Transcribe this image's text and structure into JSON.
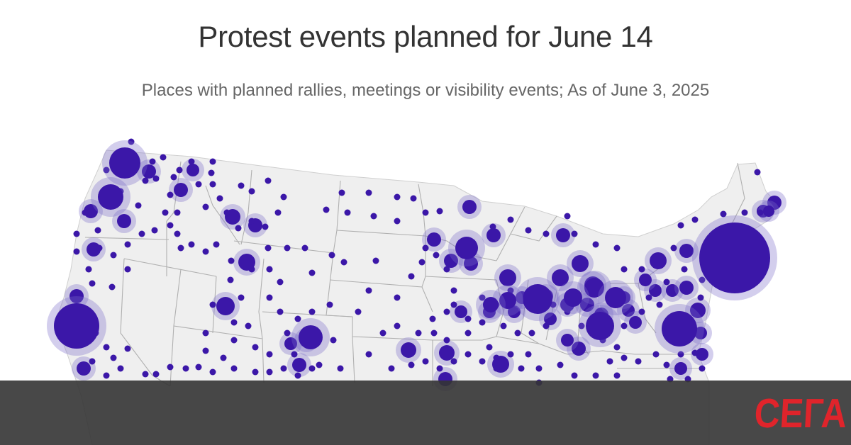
{
  "title": "Protest events planned for June 14",
  "subtitle": "Places with planned rallies, meetings or visibility events; As of June 3, 2025",
  "brand": {
    "logo_text": "СЕГА",
    "logo_color": "#e0242b"
  },
  "colors": {
    "land": "#efefef",
    "border": "#b0b0b0",
    "dot": "#3b17a8",
    "halo": "#8c80cc",
    "band": "#343434"
  }
}
